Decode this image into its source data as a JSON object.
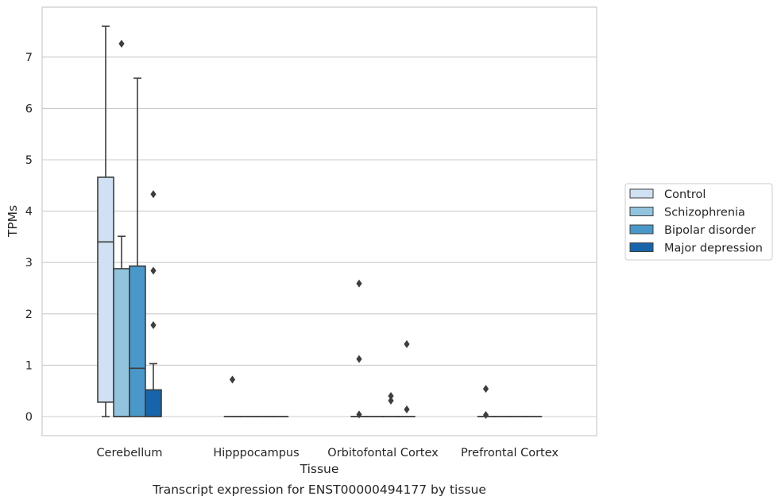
{
  "chart_data": {
    "type": "box",
    "title": "Transcript expression for ENST00000494177 by tissue",
    "xlabel": "Tissue",
    "ylabel": "TPMs",
    "ylim": [
      -0.37,
      7.9
    ],
    "yticks": [
      0,
      1,
      2,
      3,
      4,
      5,
      6,
      7
    ],
    "grid": true,
    "legend_position": "right",
    "categories": [
      "Cerebellum",
      "Hipppocampus",
      "Orbitofontal Cortex",
      "Prefrontal Cortex"
    ],
    "series": [
      {
        "name": "Control",
        "color": "#cfe1f2",
        "boxes": [
          {
            "whislo": 0.0,
            "q1": 0.28,
            "med": 3.4,
            "q3": 4.66,
            "whishi": 7.6,
            "fliers": []
          },
          {
            "whislo": 0.0,
            "q1": 0.0,
            "med": 0.0,
            "q3": 0.0,
            "whishi": 0.0,
            "fliers": [
              0.72
            ]
          },
          {
            "whislo": 0.0,
            "q1": 0.0,
            "med": 0.0,
            "q3": 0.0,
            "whishi": 0.0,
            "fliers": [
              2.59,
              1.12,
              0.04
            ]
          },
          {
            "whislo": 0.0,
            "q1": 0.0,
            "med": 0.0,
            "q3": 0.0,
            "whishi": 0.0,
            "fliers": [
              0.54,
              0.03
            ]
          }
        ]
      },
      {
        "name": "Schizophrenia",
        "color": "#93c4de",
        "boxes": [
          {
            "whislo": 0.0,
            "q1": 0.0,
            "med": 0.0,
            "q3": 2.88,
            "whishi": 3.51,
            "fliers": [
              7.26
            ]
          },
          {
            "whislo": 0.0,
            "q1": 0.0,
            "med": 0.0,
            "q3": 0.0,
            "whishi": 0.0,
            "fliers": []
          },
          {
            "whislo": 0.0,
            "q1": 0.0,
            "med": 0.0,
            "q3": 0.0,
            "whishi": 0.0,
            "fliers": []
          },
          {
            "whislo": 0.0,
            "q1": 0.0,
            "med": 0.0,
            "q3": 0.0,
            "whishi": 0.0,
            "fliers": []
          }
        ]
      },
      {
        "name": "Bipolar disorder",
        "color": "#4a98c9",
        "boxes": [
          {
            "whislo": 0.0,
            "q1": 0.0,
            "med": 0.94,
            "q3": 2.93,
            "whishi": 6.59,
            "fliers": []
          },
          {
            "whislo": 0.0,
            "q1": 0.0,
            "med": 0.0,
            "q3": 0.0,
            "whishi": 0.0,
            "fliers": []
          },
          {
            "whislo": 0.0,
            "q1": 0.0,
            "med": 0.0,
            "q3": 0.0,
            "whishi": 0.0,
            "fliers": [
              0.4,
              0.31
            ]
          },
          {
            "whislo": 0.0,
            "q1": 0.0,
            "med": 0.0,
            "q3": 0.0,
            "whishi": 0.0,
            "fliers": []
          }
        ]
      },
      {
        "name": "Major depression",
        "color": "#1764ab",
        "boxes": [
          {
            "whislo": 0.0,
            "q1": 0.0,
            "med": 0.0,
            "q3": 0.52,
            "whishi": 1.03,
            "fliers": [
              4.33,
              2.84,
              1.78
            ]
          },
          {
            "whislo": 0.0,
            "q1": 0.0,
            "med": 0.0,
            "q3": 0.0,
            "whishi": 0.0,
            "fliers": []
          },
          {
            "whislo": 0.0,
            "q1": 0.0,
            "med": 0.0,
            "q3": 0.0,
            "whishi": 0.0,
            "fliers": [
              1.41,
              0.14
            ]
          },
          {
            "whislo": 0.0,
            "q1": 0.0,
            "med": 0.0,
            "q3": 0.0,
            "whishi": 0.0,
            "fliers": []
          }
        ]
      }
    ]
  }
}
